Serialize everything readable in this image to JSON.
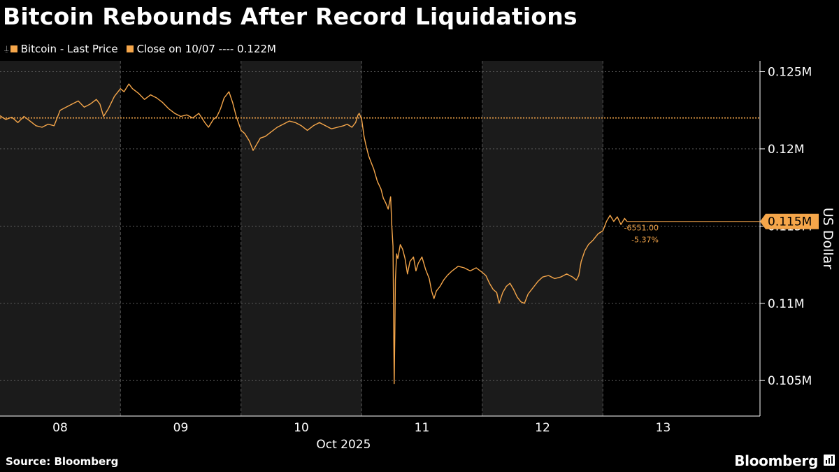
{
  "header": {
    "title": "Bitcoin Rebounds After Record Liquidations"
  },
  "legend": {
    "items": [
      {
        "label": "Bitcoin - Last Price",
        "color": "#f5a64a",
        "icon": "pin-icon"
      },
      {
        "label": "Close on 10/07 ---- 0.122M",
        "color": "#f5a64a",
        "icon": "square-icon"
      }
    ]
  },
  "footer": {
    "source": "Source: Bloomberg",
    "brand": "Bloomberg"
  },
  "chart_data": {
    "type": "line",
    "title": "Bitcoin Rebounds After Record Liquidations",
    "ylabel": "US Dollar",
    "xlabel": "Oct 2025",
    "x_ticks": [
      "08",
      "09",
      "10",
      "11",
      "12",
      "13"
    ],
    "x_range_days": [
      7.5,
      13.85
    ],
    "ylim": [
      102700,
      125700
    ],
    "y_ticks": [
      {
        "value": 105000,
        "label": "0.105M"
      },
      {
        "value": 110000,
        "label": "0.11M"
      },
      {
        "value": 115000,
        "label": "0.115M"
      },
      {
        "value": 120000,
        "label": "0.12M"
      },
      {
        "value": 125000,
        "label": "0.125M"
      }
    ],
    "grid": true,
    "shaded_bands_days": [
      [
        7.5,
        8.5
      ],
      [
        9.5,
        10.5
      ],
      [
        11.5,
        12.5
      ]
    ],
    "reference_line": {
      "label": "Close on 10/07",
      "value": 122000
    },
    "last_value": {
      "label": "0.115M",
      "value": 115300
    },
    "change_labels": [
      "-6551.00",
      "-5.37%"
    ],
    "series": [
      {
        "name": "Bitcoin - Last Price",
        "color": "#f5a64a",
        "points": [
          [
            7.5,
            122150
          ],
          [
            7.55,
            121900
          ],
          [
            7.6,
            122050
          ],
          [
            7.65,
            121700
          ],
          [
            7.7,
            122100
          ],
          [
            7.75,
            121800
          ],
          [
            7.8,
            121500
          ],
          [
            7.85,
            121400
          ],
          [
            7.9,
            121600
          ],
          [
            7.95,
            121500
          ],
          [
            7.98,
            122100
          ],
          [
            8.0,
            122500
          ],
          [
            8.05,
            122700
          ],
          [
            8.1,
            122900
          ],
          [
            8.15,
            123100
          ],
          [
            8.2,
            122700
          ],
          [
            8.25,
            122900
          ],
          [
            8.3,
            123200
          ],
          [
            8.33,
            122900
          ],
          [
            8.36,
            122100
          ],
          [
            8.4,
            122600
          ],
          [
            8.45,
            123400
          ],
          [
            8.5,
            123900
          ],
          [
            8.53,
            123700
          ],
          [
            8.57,
            124200
          ],
          [
            8.6,
            123900
          ],
          [
            8.65,
            123600
          ],
          [
            8.7,
            123200
          ],
          [
            8.75,
            123500
          ],
          [
            8.8,
            123300
          ],
          [
            8.85,
            123000
          ],
          [
            8.9,
            122600
          ],
          [
            8.95,
            122300
          ],
          [
            9.0,
            122100
          ],
          [
            9.05,
            122200
          ],
          [
            9.1,
            122000
          ],
          [
            9.15,
            122300
          ],
          [
            9.2,
            121700
          ],
          [
            9.23,
            121400
          ],
          [
            9.27,
            121900
          ],
          [
            9.3,
            122100
          ],
          [
            9.33,
            122600
          ],
          [
            9.36,
            123300
          ],
          [
            9.4,
            123700
          ],
          [
            9.43,
            123000
          ],
          [
            9.46,
            122100
          ],
          [
            9.5,
            121200
          ],
          [
            9.53,
            121000
          ],
          [
            9.57,
            120500
          ],
          [
            9.6,
            119900
          ],
          [
            9.63,
            120300
          ],
          [
            9.66,
            120700
          ],
          [
            9.7,
            120800
          ],
          [
            9.75,
            121100
          ],
          [
            9.8,
            121400
          ],
          [
            9.85,
            121600
          ],
          [
            9.9,
            121800
          ],
          [
            9.95,
            121700
          ],
          [
            10.0,
            121500
          ],
          [
            10.05,
            121200
          ],
          [
            10.1,
            121500
          ],
          [
            10.15,
            121700
          ],
          [
            10.2,
            121500
          ],
          [
            10.25,
            121300
          ],
          [
            10.3,
            121400
          ],
          [
            10.35,
            121500
          ],
          [
            10.38,
            121600
          ],
          [
            10.42,
            121400
          ],
          [
            10.45,
            121700
          ],
          [
            10.47,
            122200
          ],
          [
            10.48,
            122300
          ],
          [
            10.5,
            121900
          ],
          [
            10.52,
            120800
          ],
          [
            10.54,
            120100
          ],
          [
            10.56,
            119500
          ],
          [
            10.58,
            119100
          ],
          [
            10.6,
            118700
          ],
          [
            10.63,
            117900
          ],
          [
            10.66,
            117400
          ],
          [
            10.68,
            116800
          ],
          [
            10.7,
            116500
          ],
          [
            10.72,
            116100
          ],
          [
            10.74,
            116900
          ],
          [
            10.75,
            115000
          ],
          [
            10.76,
            113700
          ],
          [
            10.765,
            109000
          ],
          [
            10.77,
            104800
          ],
          [
            10.775,
            108000
          ],
          [
            10.78,
            111500
          ],
          [
            10.79,
            113200
          ],
          [
            10.8,
            112900
          ],
          [
            10.82,
            113800
          ],
          [
            10.84,
            113500
          ],
          [
            10.86,
            112900
          ],
          [
            10.88,
            111900
          ],
          [
            10.9,
            112700
          ],
          [
            10.93,
            113000
          ],
          [
            10.95,
            112100
          ],
          [
            10.97,
            112600
          ],
          [
            11.0,
            113000
          ],
          [
            11.03,
            112200
          ],
          [
            11.06,
            111600
          ],
          [
            11.08,
            110800
          ],
          [
            11.1,
            110300
          ],
          [
            11.12,
            110800
          ],
          [
            11.15,
            111100
          ],
          [
            11.18,
            111500
          ],
          [
            11.21,
            111800
          ],
          [
            11.25,
            112100
          ],
          [
            11.3,
            112400
          ],
          [
            11.35,
            112300
          ],
          [
            11.4,
            112100
          ],
          [
            11.45,
            112300
          ],
          [
            11.5,
            112000
          ],
          [
            11.53,
            111800
          ],
          [
            11.56,
            111300
          ],
          [
            11.59,
            110900
          ],
          [
            11.62,
            110700
          ],
          [
            11.64,
            110000
          ],
          [
            11.67,
            110700
          ],
          [
            11.7,
            111100
          ],
          [
            11.73,
            111300
          ],
          [
            11.76,
            110900
          ],
          [
            11.79,
            110400
          ],
          [
            11.82,
            110100
          ],
          [
            11.85,
            110000
          ],
          [
            11.88,
            110600
          ],
          [
            11.92,
            111000
          ],
          [
            11.96,
            111400
          ],
          [
            12.0,
            111700
          ],
          [
            12.05,
            111800
          ],
          [
            12.1,
            111600
          ],
          [
            12.15,
            111700
          ],
          [
            12.2,
            111900
          ],
          [
            12.25,
            111700
          ],
          [
            12.28,
            111500
          ],
          [
            12.3,
            111800
          ],
          [
            12.32,
            112700
          ],
          [
            12.35,
            113400
          ],
          [
            12.38,
            113800
          ],
          [
            12.42,
            114100
          ],
          [
            12.46,
            114500
          ],
          [
            12.5,
            114700
          ],
          [
            12.53,
            115300
          ],
          [
            12.56,
            115700
          ],
          [
            12.59,
            115300
          ],
          [
            12.62,
            115600
          ],
          [
            12.65,
            115100
          ],
          [
            12.68,
            115500
          ],
          [
            12.7,
            115300
          ]
        ]
      }
    ]
  }
}
